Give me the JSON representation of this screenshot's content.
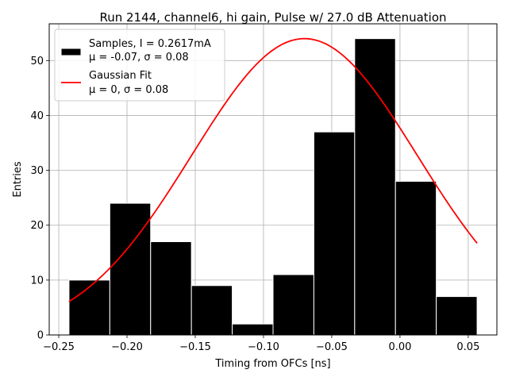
{
  "chart_data": {
    "type": "bar",
    "title": "Run 2144, channel6, hi gain, Pulse w/ 27.0 dB Attenuation",
    "xlabel": "Timing from OFCs [ns]",
    "ylabel": "Entries",
    "xlim": [
      -0.257,
      0.071
    ],
    "ylim": [
      0,
      56.7
    ],
    "xticks": [
      -0.25,
      -0.2,
      -0.15,
      -0.1,
      -0.05,
      0.0,
      0.05
    ],
    "xtick_labels": [
      "−0.25",
      "−0.20",
      "−0.15",
      "−0.10",
      "−0.05",
      "0.00",
      "0.05"
    ],
    "yticks": [
      0,
      10,
      20,
      30,
      40,
      50
    ],
    "ytick_labels": [
      "0",
      "10",
      "20",
      "30",
      "40",
      "50"
    ],
    "grid": true,
    "histogram": {
      "name": "Samples, I = 0.2617mA",
      "stats_label": "μ = -0.07, σ = 0.08",
      "color": "#000000",
      "edge_color": "#ffffff",
      "bin_edges": [
        -0.2425,
        -0.2126,
        -0.1827,
        -0.1528,
        -0.1229,
        -0.093,
        -0.0631,
        -0.0332,
        -0.0033,
        0.0266,
        0.0565
      ],
      "values": [
        10,
        24,
        17,
        9,
        2,
        11,
        37,
        54,
        28,
        7
      ]
    },
    "fit": {
      "name": "Gaussian Fit",
      "stats_label": "μ = 0, σ = 0.08",
      "color": "#ff0000",
      "amplitude": 54,
      "mean": -0.07,
      "sigma": 0.0826,
      "x_range": [
        -0.2425,
        0.0565
      ]
    },
    "legend_position": "top-left"
  }
}
